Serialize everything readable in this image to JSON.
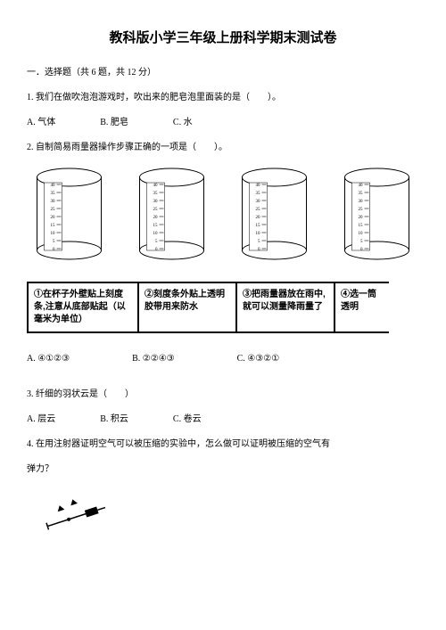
{
  "title": "教科版小学三年级上册科学期末测试卷",
  "section": {
    "heading": "一．选择题（共 6 题，共 12 分）"
  },
  "q1": {
    "text": "1. 我们在做吹泡泡游戏时，吹出来的肥皂泡里面装的是（　　）。",
    "opts": {
      "a": "A. 气体",
      "b": "B. 肥皂",
      "c": "C. 水"
    }
  },
  "q2": {
    "text": "2. 自制简易雨量器操作步骤正确的一项是（　　）。",
    "cylinder": {
      "ticks": [
        "40",
        "35",
        "30",
        "25",
        "20",
        "15",
        "10",
        "5",
        "0"
      ],
      "stroke": "#000000",
      "fill": "#ffffff"
    },
    "boxes": {
      "b1": "①在杯子外壁贴上刻度条,注意从底部贴起（以毫米为单位）",
      "b2": "②刻度条外贴上透明胶带用来防水",
      "b3": "③把雨量器放在雨中,就可以测量降雨量了",
      "b4": "④选一筒透明"
    },
    "opts": {
      "a": "A. ④①②③",
      "b": "B. ②②④③",
      "c": "C. ④③②①"
    }
  },
  "q3": {
    "text": "3. 纤细的羽状云是（　　）",
    "opts": {
      "a": "A. 层云",
      "b": "B. 积云",
      "c": "C. 卷云"
    }
  },
  "q4": {
    "text": "4. 在用注射器证明空气可以被压缩的实验中，怎么做可以证明被压缩的空气有",
    "text2": "弹力？"
  },
  "colors": {
    "text": "#000000",
    "bg": "#ffffff"
  }
}
